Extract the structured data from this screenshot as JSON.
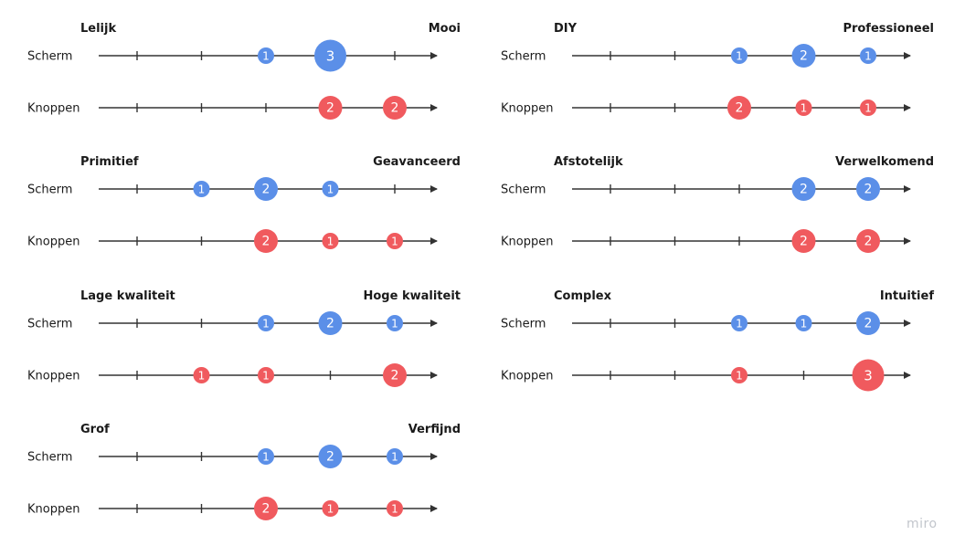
{
  "colors": {
    "scherm": "#5b8fe8",
    "knoppen": "#f05a5e",
    "axis": "#333333"
  },
  "rows_labels": {
    "screen": "Scherm",
    "buttons": "Knoppen"
  },
  "watermark": "miro",
  "scale_positions": 6,
  "scales": [
    {
      "left": "Lelijk",
      "right": "Mooi",
      "scherm": [
        {
          "pos": 3,
          "count": 1
        },
        {
          "pos": 4,
          "count": 3
        }
      ],
      "knoppen": [
        {
          "pos": 4,
          "count": 2
        },
        {
          "pos": 5,
          "count": 2
        }
      ]
    },
    {
      "left": "DIY",
      "right": "Professioneel",
      "scherm": [
        {
          "pos": 3,
          "count": 1
        },
        {
          "pos": 4,
          "count": 2
        },
        {
          "pos": 5,
          "count": 1
        }
      ],
      "knoppen": [
        {
          "pos": 3,
          "count": 2
        },
        {
          "pos": 4,
          "count": 1
        },
        {
          "pos": 5,
          "count": 1
        }
      ]
    },
    {
      "left": "Primitief",
      "right": "Geavanceerd",
      "scherm": [
        {
          "pos": 2,
          "count": 1
        },
        {
          "pos": 3,
          "count": 2
        },
        {
          "pos": 4,
          "count": 1
        }
      ],
      "knoppen": [
        {
          "pos": 3,
          "count": 2
        },
        {
          "pos": 4,
          "count": 1
        },
        {
          "pos": 5,
          "count": 1
        }
      ]
    },
    {
      "left": "Afstotelijk",
      "right": "Verwelkomend",
      "scherm": [
        {
          "pos": 4,
          "count": 2
        },
        {
          "pos": 5,
          "count": 2
        }
      ],
      "knoppen": [
        {
          "pos": 4,
          "count": 2
        },
        {
          "pos": 5,
          "count": 2
        }
      ]
    },
    {
      "left": "Lage kwaliteit",
      "right": "Hoge kwaliteit",
      "scherm": [
        {
          "pos": 3,
          "count": 1
        },
        {
          "pos": 4,
          "count": 2
        },
        {
          "pos": 5,
          "count": 1
        }
      ],
      "knoppen": [
        {
          "pos": 2,
          "count": 1
        },
        {
          "pos": 3,
          "count": 1
        },
        {
          "pos": 5,
          "count": 2
        }
      ]
    },
    {
      "left": "Complex",
      "right": "Intuitief",
      "scherm": [
        {
          "pos": 3,
          "count": 1
        },
        {
          "pos": 4,
          "count": 1
        },
        {
          "pos": 5,
          "count": 2
        }
      ],
      "knoppen": [
        {
          "pos": 3,
          "count": 1
        },
        {
          "pos": 5,
          "count": 3
        }
      ]
    },
    {
      "left": "Grof",
      "right": "Verfijnd",
      "scherm": [
        {
          "pos": 3,
          "count": 1
        },
        {
          "pos": 4,
          "count": 2
        },
        {
          "pos": 5,
          "count": 1
        }
      ],
      "knoppen": [
        {
          "pos": 3,
          "count": 2
        },
        {
          "pos": 4,
          "count": 1
        },
        {
          "pos": 5,
          "count": 1
        }
      ]
    }
  ]
}
